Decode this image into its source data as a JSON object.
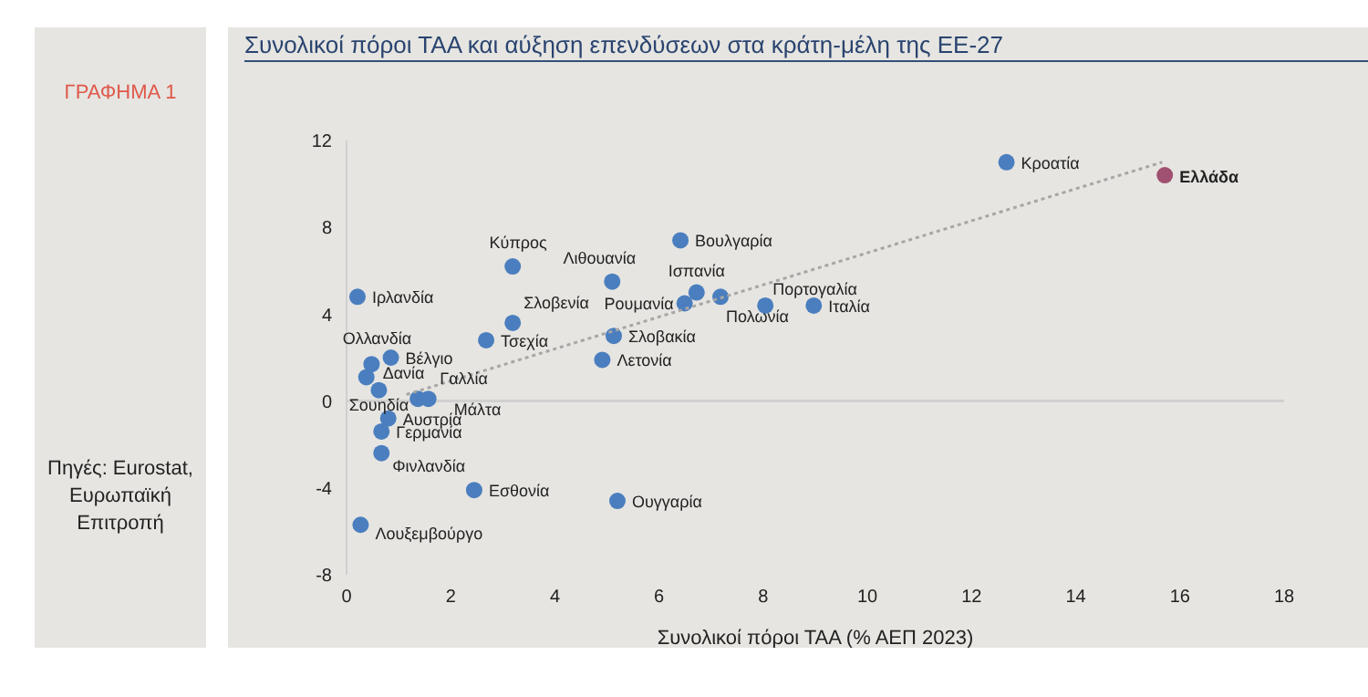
{
  "chart_data": {
    "type": "scatter",
    "title": "Συνολικοί πόροι ΤΑΑ και αύξηση επενδύσεων στα κράτη-μέλη της ΕΕ-27",
    "xlabel": "Συνολικοί  πόροι ΤΑΑ (% ΑΕΠ 2023)",
    "annotations": [
      "ΓΡΑΦΗΜΑ 1",
      "Πηγές: Eurostat, Ευρωπαϊκή Επιτροπή"
    ],
    "xlim": [
      0,
      18
    ],
    "xticks": [
      0,
      2,
      4,
      6,
      8,
      10,
      12,
      14,
      16,
      18
    ],
    "ylim": [
      -8,
      12
    ],
    "yticks": [
      -8,
      -4,
      0,
      4,
      8,
      12
    ],
    "ref_lines": [
      {
        "axis": "y",
        "value": 0,
        "color": "#d0d0d0"
      }
    ],
    "series": [
      {
        "marker": "circle",
        "color": "#4a7ebf",
        "x": [
          12.67,
          15.71,
          6.41,
          3.19,
          5.1,
          6.72,
          6.49,
          7.18,
          8.04,
          8.97,
          0.21,
          3.19,
          5.13,
          2.68,
          4.91,
          0.48,
          0.85,
          0.38,
          1.37,
          0.62,
          1.57,
          0.8,
          0.67,
          0.67,
          2.45,
          5.2,
          0.27
        ],
        "values": [
          11.0,
          10.4,
          7.4,
          6.2,
          5.5,
          5.0,
          4.5,
          4.8,
          4.4,
          4.4,
          4.8,
          3.6,
          3.0,
          2.8,
          1.9,
          1.7,
          2.0,
          1.1,
          0.1,
          0.5,
          0.1,
          -0.8,
          -1.4,
          -2.4,
          -4.1,
          -4.6,
          -5.7
        ],
        "colors": [
          "#4a7ebf",
          "#a05070",
          "#4a7ebf",
          "#4a7ebf",
          "#4a7ebf",
          "#4a7ebf",
          "#4a7ebf",
          "#4a7ebf",
          "#4a7ebf",
          "#4a7ebf",
          "#4a7ebf",
          "#4a7ebf",
          "#4a7ebf",
          "#4a7ebf",
          "#4a7ebf",
          "#4a7ebf",
          "#4a7ebf",
          "#4a7ebf",
          "#4a7ebf",
          "#4a7ebf",
          "#4a7ebf",
          "#4a7ebf",
          "#4a7ebf",
          "#4a7ebf",
          "#4a7ebf",
          "#4a7ebf",
          "#4a7ebf"
        ],
        "value_labels": [
          "Κροατία",
          "Ελλάδα",
          "Βουλγαρία",
          "Κύπρος",
          "Λιθουανία",
          "Ισπανία",
          "Ρουμανία",
          "Πολωνία",
          "Πορτογαλία",
          "Ιταλία",
          "Ιρλανδία",
          "Σλοβενία",
          "Σλοβακία",
          "Τσεχία",
          "Λετονία",
          "Ολλανδία",
          "Βέλγιο",
          "Δανία",
          "Γαλλία",
          "Σουηδία",
          "Μάλτα",
          "Αυστρία",
          "Γερμανία",
          "Φινλανδία",
          "Εσθονία",
          "Ουγγαρία",
          "Λουξεμβούργο"
        ]
      },
      {
        "type": "line",
        "color": "#a6a6a6",
        "line_style": "dotted",
        "x": [
          1.15,
          15.66
        ],
        "values": [
          0.3,
          11.0
        ]
      }
    ]
  }
}
